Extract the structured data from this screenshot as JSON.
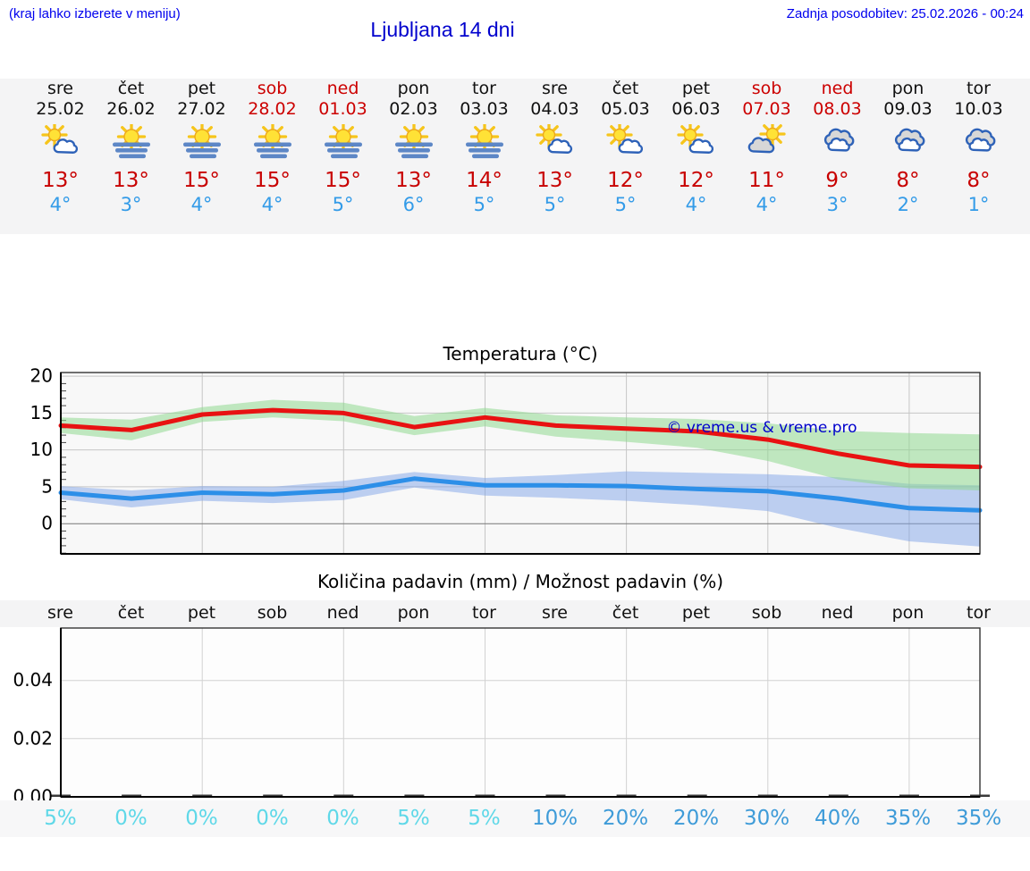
{
  "header": {
    "hint": "(kraj lahko izberete v meniju)",
    "title": "Ljubljana 14 dni",
    "last_update": "Zadnja posodobitev: 25.02.2026 - 00:24"
  },
  "colors": {
    "link_blue": "#0000ee",
    "title_blue": "#0000cd",
    "weekend_red": "#cc0000",
    "high_temp_red": "#c80000",
    "low_temp_blue": "#339be8",
    "max_line_red": "#e81212",
    "min_line_blue": "#2d8fe8",
    "max_band_green": "#8fd88f",
    "min_band_blue": "#7fa3e8",
    "pct_low_cyan": "#5fd8e8",
    "pct_high_blue": "#3e9bd8",
    "strip_bg": "#f4f4f5",
    "plot_bg": "#f8f8f8"
  },
  "forecast": {
    "days": [
      {
        "name": "sre",
        "date": "25.02",
        "weekend": false,
        "icon": "sun-cloud",
        "high": "13°",
        "low": "4°",
        "precip_pct": "5%"
      },
      {
        "name": "čet",
        "date": "26.02",
        "weekend": false,
        "icon": "sun-fog",
        "high": "13°",
        "low": "3°",
        "precip_pct": "0%"
      },
      {
        "name": "pet",
        "date": "27.02",
        "weekend": false,
        "icon": "sun-fog",
        "high": "15°",
        "low": "4°",
        "precip_pct": "0%"
      },
      {
        "name": "sob",
        "date": "28.02",
        "weekend": true,
        "icon": "sun-fog",
        "high": "15°",
        "low": "4°",
        "precip_pct": "0%"
      },
      {
        "name": "ned",
        "date": "01.03",
        "weekend": true,
        "icon": "sun-fog",
        "high": "15°",
        "low": "5°",
        "precip_pct": "0%"
      },
      {
        "name": "pon",
        "date": "02.03",
        "weekend": false,
        "icon": "sun-fog",
        "high": "13°",
        "low": "6°",
        "precip_pct": "5%"
      },
      {
        "name": "tor",
        "date": "03.03",
        "weekend": false,
        "icon": "sun-fog",
        "high": "14°",
        "low": "5°",
        "precip_pct": "5%"
      },
      {
        "name": "sre",
        "date": "04.03",
        "weekend": false,
        "icon": "sun-cloud",
        "high": "13°",
        "low": "5°",
        "precip_pct": "10%"
      },
      {
        "name": "čet",
        "date": "05.03",
        "weekend": false,
        "icon": "sun-cloud",
        "high": "12°",
        "low": "5°",
        "precip_pct": "20%"
      },
      {
        "name": "pet",
        "date": "06.03",
        "weekend": false,
        "icon": "sun-cloud",
        "high": "12°",
        "low": "4°",
        "precip_pct": "20%"
      },
      {
        "name": "sob",
        "date": "07.03",
        "weekend": true,
        "icon": "sun-graycloud",
        "high": "11°",
        "low": "4°",
        "precip_pct": "30%"
      },
      {
        "name": "ned",
        "date": "08.03",
        "weekend": true,
        "icon": "cloudy",
        "high": "9°",
        "low": "3°",
        "precip_pct": "40%"
      },
      {
        "name": "pon",
        "date": "09.03",
        "weekend": false,
        "icon": "cloudy",
        "high": "8°",
        "low": "2°",
        "precip_pct": "35%"
      },
      {
        "name": "tor",
        "date": "10.03",
        "weekend": false,
        "icon": "cloudy",
        "high": "8°",
        "low": "1°",
        "precip_pct": "35%"
      }
    ]
  },
  "chart_data": [
    {
      "type": "line",
      "title": "Temperatura (°C)",
      "watermark": "© vreme.us & vreme.pro",
      "categories": [
        "sre 25.02",
        "čet 26.02",
        "pet 27.02",
        "sob 28.02",
        "ned 01.03",
        "pon 02.03",
        "tor 03.03",
        "sre 04.03",
        "čet 05.03",
        "pet 06.03",
        "sob 07.03",
        "ned 08.03",
        "pon 09.03",
        "tor 10.03"
      ],
      "yticks": [
        0,
        5,
        10,
        15,
        20
      ],
      "ylim": [
        -4.1,
        20.5
      ],
      "grid_vertical_day_indices": [
        2,
        4,
        6,
        8,
        10,
        12
      ],
      "series": [
        {
          "name": "max-temp",
          "color": "#e81212",
          "values": [
            13.3,
            12.7,
            14.8,
            15.4,
            15.0,
            13.1,
            14.4,
            13.3,
            12.9,
            12.5,
            11.4,
            9.5,
            7.9,
            7.7
          ]
        },
        {
          "name": "min-temp",
          "color": "#2d8fe8",
          "values": [
            4.2,
            3.4,
            4.2,
            4.0,
            4.5,
            6.1,
            5.2,
            5.2,
            5.1,
            4.7,
            4.4,
            3.4,
            2.1,
            1.8
          ]
        }
      ],
      "bands": [
        {
          "name": "min-temp-range",
          "color": "#7fa3e8",
          "opacity": 0.5,
          "upper": [
            5.1,
            4.5,
            5.1,
            5.0,
            5.8,
            7.0,
            6.2,
            6.6,
            7.1,
            6.9,
            6.7,
            6.3,
            5.4,
            5.2
          ],
          "lower": [
            3.3,
            2.2,
            3.1,
            2.8,
            3.2,
            4.9,
            3.8,
            3.5,
            3.1,
            2.5,
            1.7,
            -0.6,
            -2.4,
            -3.1
          ]
        },
        {
          "name": "max-temp-range",
          "color": "#8fd88f",
          "opacity": 0.55,
          "upper": [
            14.4,
            14.1,
            15.8,
            16.8,
            16.4,
            14.6,
            15.7,
            14.7,
            14.4,
            14.2,
            13.6,
            12.6,
            12.3,
            12.1
          ],
          "lower": [
            12.3,
            11.3,
            13.8,
            14.4,
            13.9,
            12.0,
            13.2,
            11.8,
            11.1,
            10.3,
            8.5,
            6.0,
            4.8,
            4.5
          ]
        }
      ]
    },
    {
      "type": "bar",
      "title": "Količina padavin (mm) / Možnost padavin (%)",
      "categories": [
        "sre",
        "čet",
        "pet",
        "sob",
        "ned",
        "pon",
        "tor",
        "sre",
        "čet",
        "pet",
        "sob",
        "ned",
        "pon",
        "tor"
      ],
      "values": [
        0,
        0,
        0,
        0,
        0,
        0,
        0,
        0,
        0,
        0,
        0,
        0,
        0,
        0
      ],
      "yticks": [
        0,
        0.02,
        0.04
      ],
      "ytick_labels": [
        "0.00",
        "0.02",
        "0.04"
      ],
      "ylim": [
        0,
        0.058
      ],
      "grid_vertical_day_indices": [
        2,
        4,
        6,
        8,
        10,
        12
      ],
      "probability_pct": [
        5,
        0,
        0,
        0,
        0,
        5,
        5,
        10,
        20,
        20,
        30,
        40,
        35,
        35
      ]
    }
  ]
}
